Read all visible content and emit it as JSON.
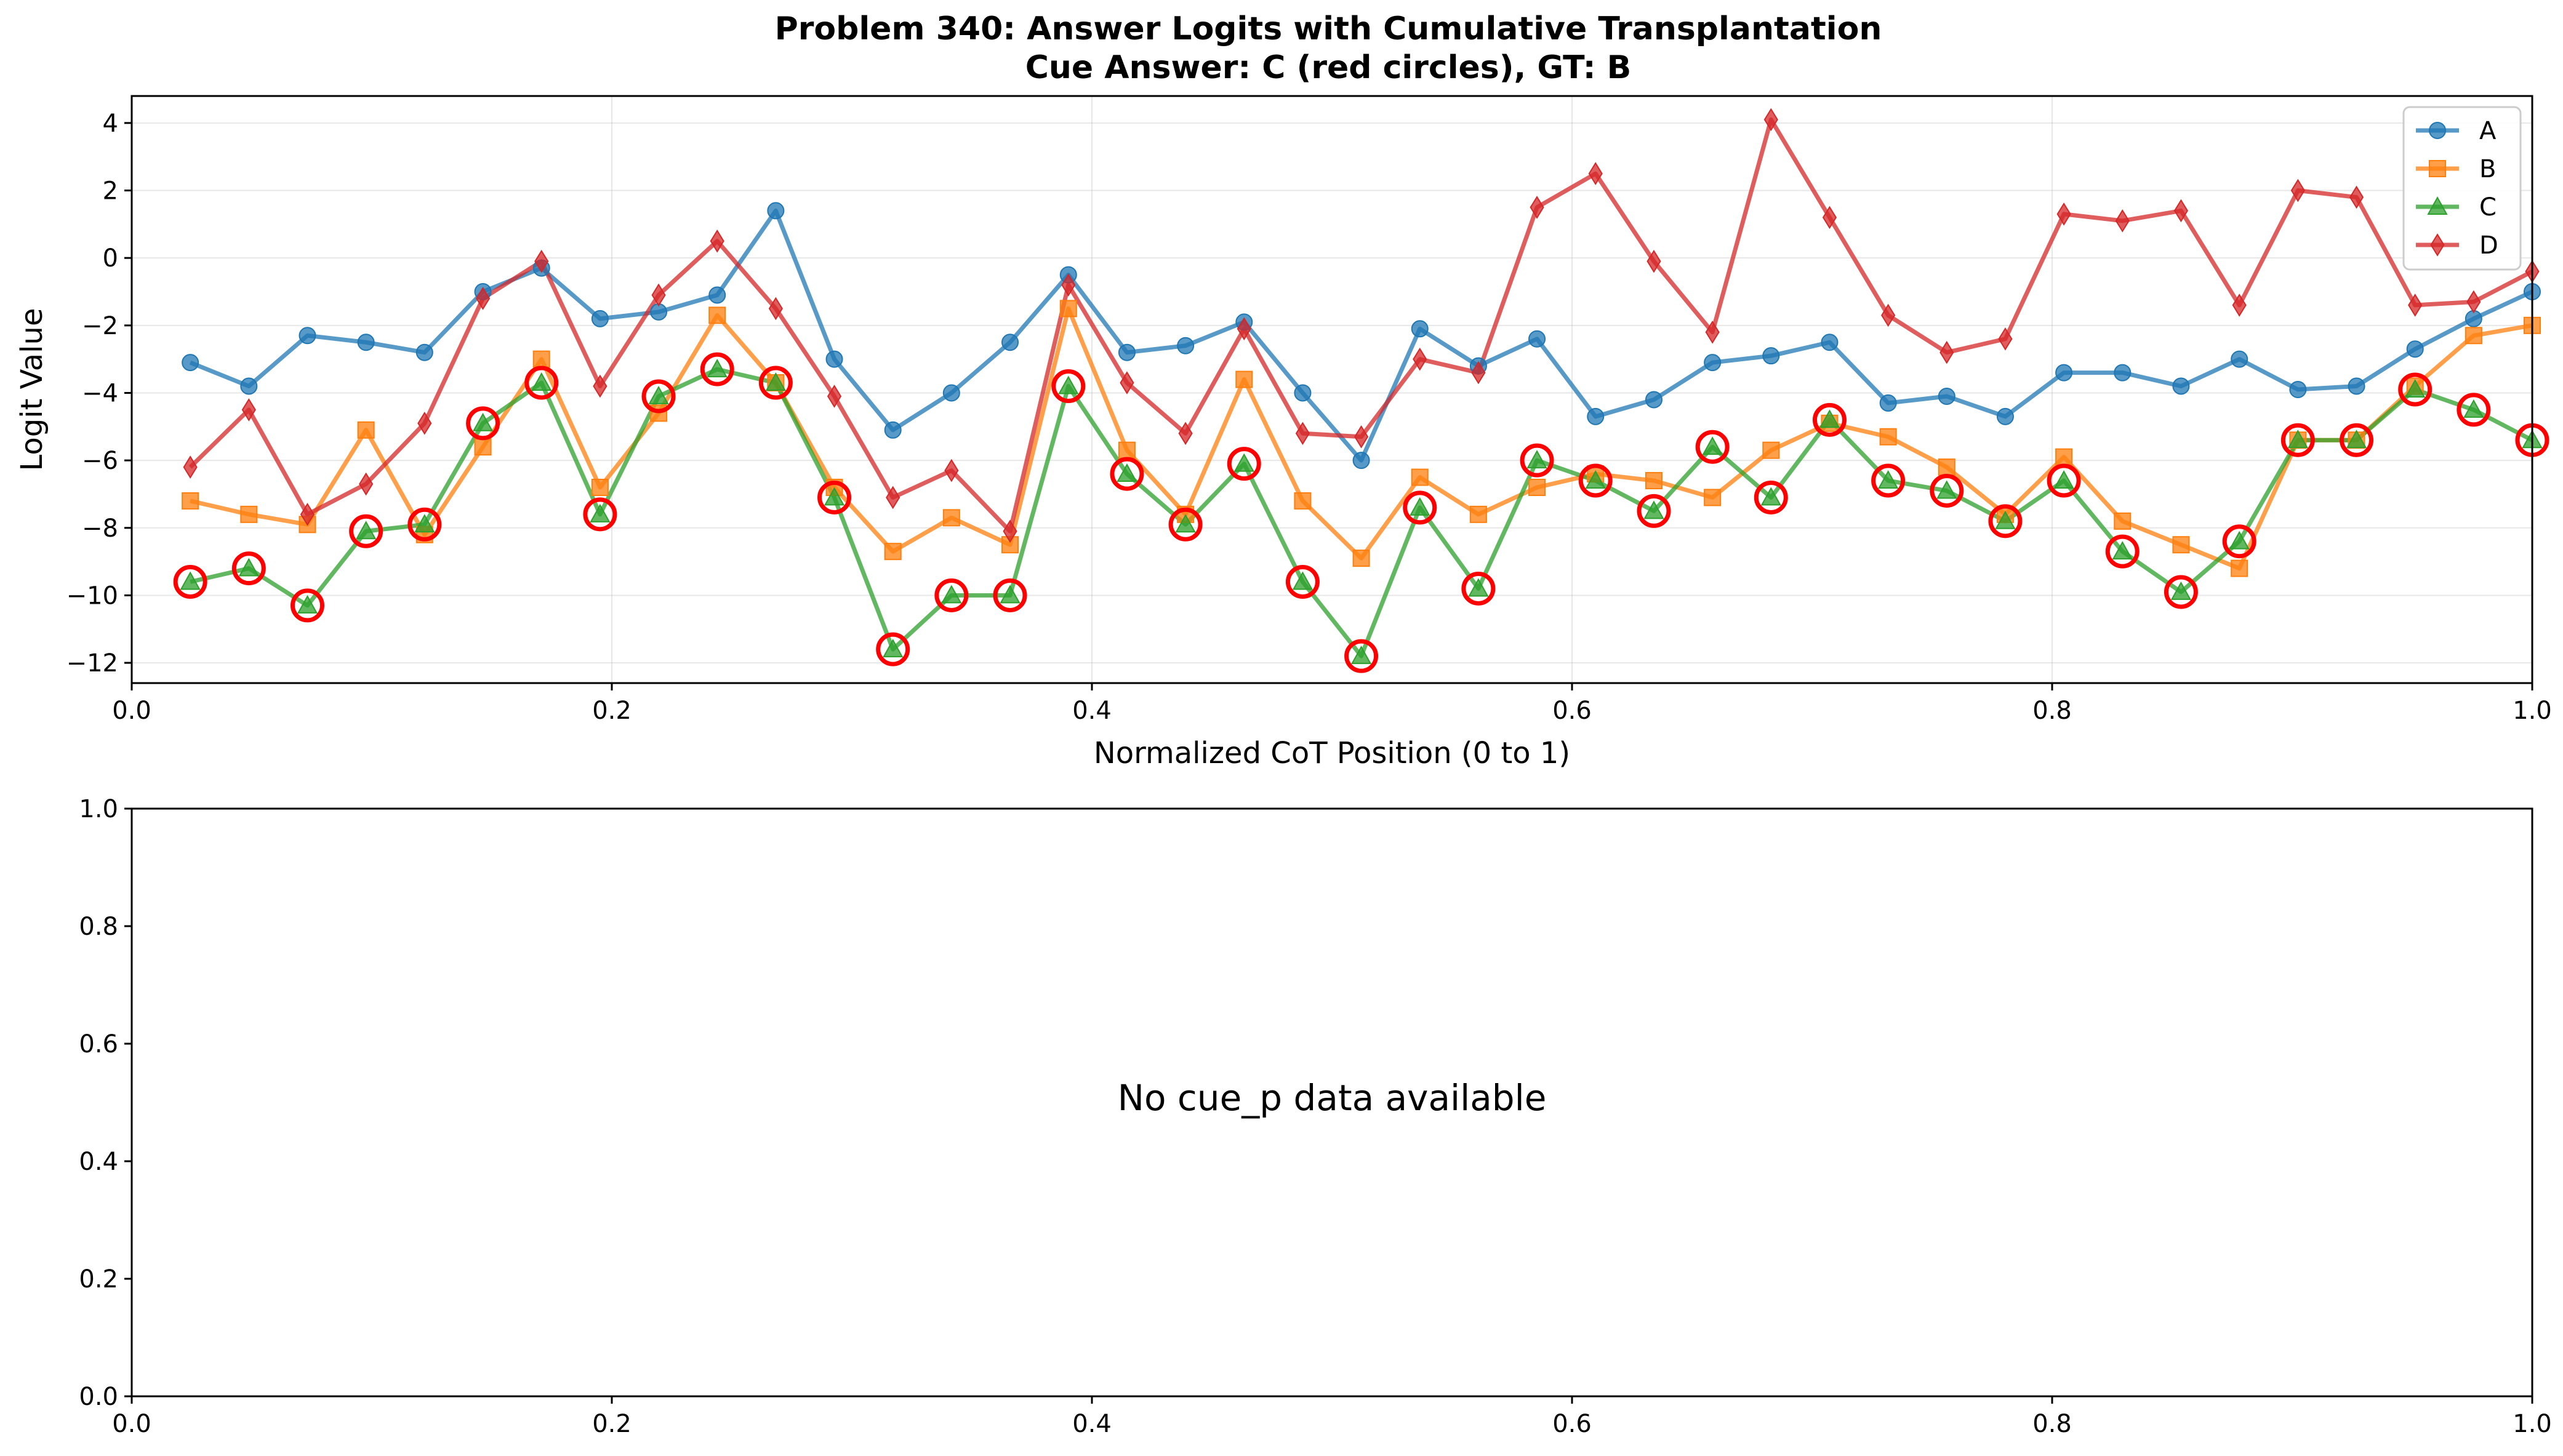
{
  "chart_data": [
    {
      "type": "line",
      "title": "Problem 340: Answer Logits with Cumulative Transplantation",
      "subtitle": "Cue Answer: C (red circles), GT: B",
      "xlabel": "Normalized CoT Position (0 to 1)",
      "ylabel": "Logit Value",
      "xlim": [
        0,
        1
      ],
      "ylim": [
        -12.6,
        4.8
      ],
      "xticks": [
        0.0,
        0.2,
        0.4,
        0.6,
        0.8,
        1.0
      ],
      "xtick_labels": [
        "0.0",
        "0.2",
        "0.4",
        "0.6",
        "0.8",
        "1.0"
      ],
      "yticks": [
        -12,
        -10,
        -8,
        -6,
        -4,
        -2,
        0,
        2,
        4
      ],
      "ytick_labels": [
        "−12",
        "−10",
        "−8",
        "−6",
        "−4",
        "−2",
        "0",
        "2",
        "4"
      ],
      "grid": true,
      "legend": "top-right",
      "x": [
        0.0244,
        0.0488,
        0.0732,
        0.0976,
        0.122,
        0.1463,
        0.1707,
        0.1951,
        0.2195,
        0.2439,
        0.2683,
        0.2927,
        0.3171,
        0.3415,
        0.3659,
        0.3902,
        0.4146,
        0.439,
        0.4634,
        0.4878,
        0.5122,
        0.5366,
        0.561,
        0.5854,
        0.6098,
        0.6341,
        0.6585,
        0.6829,
        0.7073,
        0.7317,
        0.7561,
        0.7805,
        0.8049,
        0.8293,
        0.8537,
        0.878,
        0.9024,
        0.9268,
        0.9512,
        0.9756,
        1.0
      ],
      "series": [
        {
          "name": "A",
          "color": "#1f77b4",
          "marker": "circle",
          "values": [
            -3.1,
            -3.8,
            -2.3,
            -2.5,
            -2.8,
            -1.0,
            -0.3,
            -1.8,
            -1.6,
            -1.1,
            1.4,
            -3.0,
            -5.1,
            -4.0,
            -2.5,
            -0.5,
            -2.8,
            -2.6,
            -1.9,
            -4.0,
            -6.0,
            -2.1,
            -3.2,
            -2.4,
            -4.7,
            -4.2,
            -3.1,
            -2.9,
            -2.5,
            -4.3,
            -4.1,
            -4.7,
            -3.4,
            -3.4,
            -3.8,
            -3.0,
            -3.9,
            -3.8,
            -2.7,
            -1.8,
            -1.0
          ]
        },
        {
          "name": "B",
          "color": "#ff7f0e",
          "marker": "square",
          "values": [
            -7.2,
            -7.6,
            -7.9,
            -5.1,
            -8.2,
            -5.6,
            -3.0,
            -6.8,
            -4.6,
            -1.7,
            -3.7,
            -6.8,
            -8.7,
            -7.7,
            -8.5,
            -1.5,
            -5.7,
            -7.6,
            -3.6,
            -7.2,
            -8.9,
            -6.5,
            -7.6,
            -6.8,
            -6.4,
            -6.6,
            -7.1,
            -5.7,
            -4.9,
            -5.3,
            -6.2,
            -7.6,
            -5.9,
            -7.8,
            -8.5,
            -9.2,
            -5.4,
            -5.4,
            -3.8,
            -2.3,
            -2.0
          ]
        },
        {
          "name": "C",
          "color": "#2ca02c",
          "marker": "triangle",
          "values": [
            -9.6,
            -9.2,
            -10.3,
            -8.1,
            -7.9,
            -4.9,
            -3.7,
            -7.6,
            -4.1,
            -3.3,
            -3.7,
            -7.1,
            -11.6,
            -10.0,
            -10.0,
            -3.8,
            -6.4,
            -7.9,
            -6.1,
            -9.6,
            -11.8,
            -7.4,
            -9.8,
            -6.0,
            -6.6,
            -7.5,
            -5.6,
            -7.1,
            -4.8,
            -6.6,
            -6.9,
            -7.8,
            -6.6,
            -8.7,
            -9.9,
            -8.4,
            -5.4,
            -5.4,
            -3.9,
            -4.5,
            -5.4
          ]
        },
        {
          "name": "D",
          "color": "#d62728",
          "marker": "diamond",
          "values": [
            -6.2,
            -4.5,
            -7.6,
            -6.7,
            -4.9,
            -1.2,
            -0.1,
            -3.8,
            -1.1,
            0.5,
            -1.5,
            -4.1,
            -7.1,
            -6.3,
            -8.1,
            -0.8,
            -3.7,
            -5.2,
            -2.1,
            -5.2,
            -5.3,
            -3.0,
            -3.4,
            1.5,
            2.5,
            -0.1,
            -2.2,
            4.1,
            1.2,
            -1.7,
            -2.8,
            -2.4,
            1.3,
            1.1,
            1.4,
            -1.4,
            2.0,
            1.8,
            -1.4,
            -1.3,
            -0.4
          ]
        }
      ],
      "cue_answer": "C",
      "highlight_series": "C",
      "highlight_color": "#ff0000"
    },
    {
      "type": "line",
      "xlim": [
        0,
        1
      ],
      "ylim": [
        0,
        1
      ],
      "xticks": [
        0.0,
        0.2,
        0.4,
        0.6,
        0.8,
        1.0
      ],
      "xtick_labels": [
        "0.0",
        "0.2",
        "0.4",
        "0.6",
        "0.8",
        "1.0"
      ],
      "yticks": [
        0.0,
        0.2,
        0.4,
        0.6,
        0.8,
        1.0
      ],
      "ytick_labels": [
        "0.0",
        "0.2",
        "0.4",
        "0.6",
        "0.8",
        "1.0"
      ],
      "grid": false,
      "annotation": "No cue_p data available",
      "series": []
    }
  ]
}
